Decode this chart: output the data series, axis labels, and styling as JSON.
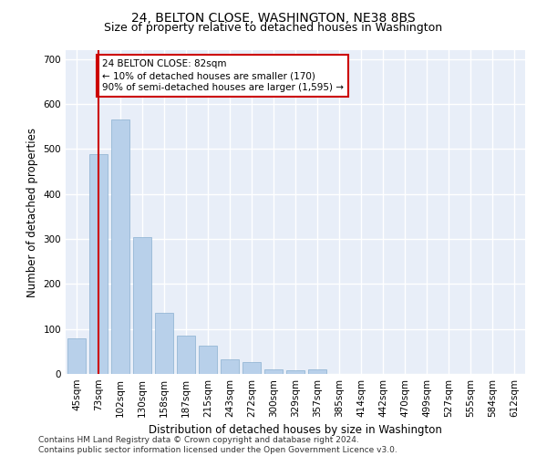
{
  "title": "24, BELTON CLOSE, WASHINGTON, NE38 8BS",
  "subtitle": "Size of property relative to detached houses in Washington",
  "xlabel": "Distribution of detached houses by size in Washington",
  "ylabel": "Number of detached properties",
  "bar_color": "#b8d0ea",
  "bar_edge_color": "#8ab0d0",
  "vline_color": "#cc0000",
  "vline_x": 1,
  "annotation_text": "24 BELTON CLOSE: 82sqm\n← 10% of detached houses are smaller (170)\n90% of semi-detached houses are larger (1,595) →",
  "annotation_box_color": "#ffffff",
  "annotation_border_color": "#cc0000",
  "categories": [
    "45sqm",
    "73sqm",
    "102sqm",
    "130sqm",
    "158sqm",
    "187sqm",
    "215sqm",
    "243sqm",
    "272sqm",
    "300sqm",
    "329sqm",
    "357sqm",
    "385sqm",
    "414sqm",
    "442sqm",
    "470sqm",
    "499sqm",
    "527sqm",
    "555sqm",
    "584sqm",
    "612sqm"
  ],
  "values": [
    80,
    488,
    565,
    305,
    135,
    85,
    63,
    32,
    27,
    10,
    8,
    10,
    0,
    0,
    0,
    0,
    0,
    0,
    0,
    0,
    0
  ],
  "ylim": [
    0,
    720
  ],
  "yticks": [
    0,
    100,
    200,
    300,
    400,
    500,
    600,
    700
  ],
  "footer": "Contains HM Land Registry data © Crown copyright and database right 2024.\nContains public sector information licensed under the Open Government Licence v3.0.",
  "background_color": "#e8eef8",
  "grid_color": "#ffffff",
  "title_fontsize": 10,
  "subtitle_fontsize": 9,
  "axis_label_fontsize": 8.5,
  "tick_fontsize": 7.5,
  "annotation_fontsize": 7.5,
  "footer_fontsize": 6.5
}
